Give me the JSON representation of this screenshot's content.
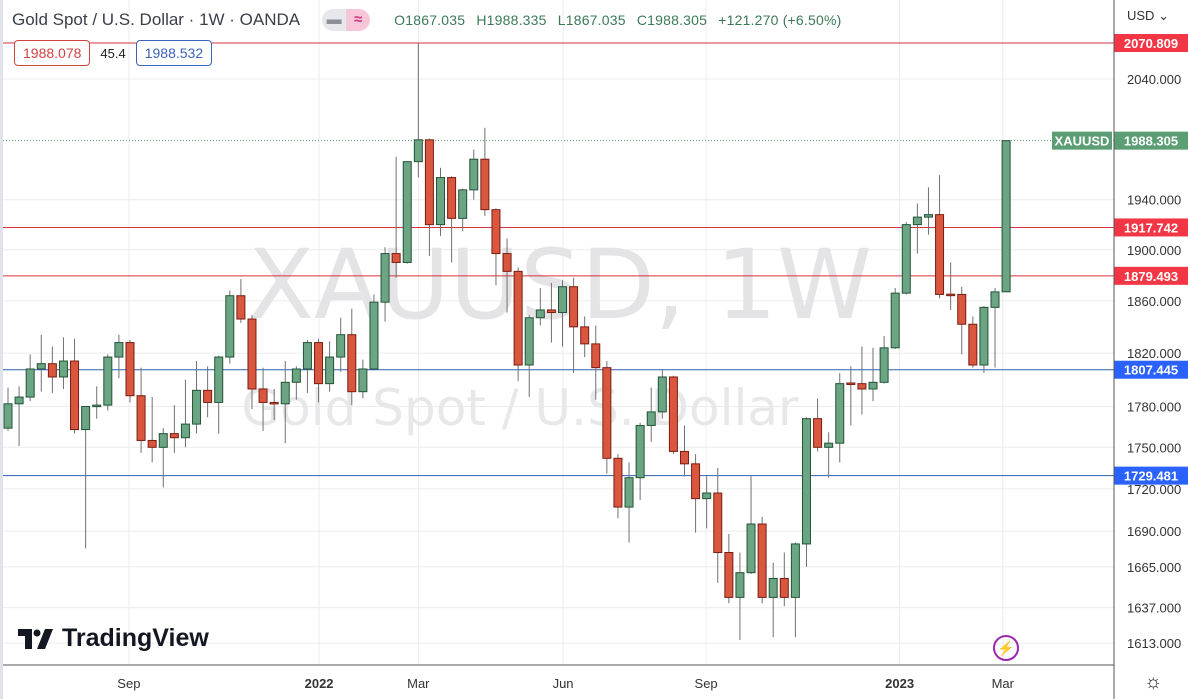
{
  "header": {
    "title": "Gold Spot / U.S. Dollar · 1W · OANDA",
    "open": "O1867.035",
    "high": "H1988.335",
    "low": "L1867.035",
    "close": "C1988.305",
    "change": "+121.270 (+6.50%)"
  },
  "trade": {
    "sell": "1988.078",
    "spread": "45.4",
    "buy": "1988.532"
  },
  "currency_label": "USD",
  "logo_text": "TradingView",
  "colors": {
    "up": "#6ba583",
    "up_border": "#225437",
    "down": "#d9573f",
    "down_border": "#7a1d12",
    "wick": "#707070",
    "resistance": "#d6323f",
    "support": "#2f5fb3",
    "last_price": "#5c9e74"
  },
  "chart_data": {
    "type": "candlestick",
    "title": "XAUUSD, 1W",
    "subtitle": "Gold Spot / U.S. Dollar",
    "yscale": "log",
    "ylim": [
      1595,
      2090
    ],
    "grid": true,
    "y_ticks": [
      "2040.000",
      "1940.000",
      "1900.000",
      "1860.000",
      "1820.000",
      "1780.000",
      "1750.000",
      "1720.000",
      "1690.000",
      "1665.000",
      "1637.000",
      "1613.000"
    ],
    "x_ticks": [
      {
        "label": "Sep",
        "week_index": 10.9
      },
      {
        "label": "2022",
        "week_index": 28.05
      },
      {
        "label": "Mar",
        "week_index": 37.0
      },
      {
        "label": "Jun",
        "week_index": 50.05
      },
      {
        "label": "Sep",
        "week_index": 62.95
      },
      {
        "label": "2023",
        "week_index": 80.4
      },
      {
        "label": "Mar",
        "week_index": 89.7
      }
    ],
    "horizontal_levels": [
      {
        "price": 2070.809,
        "label": "2070.809",
        "kind": "resistance"
      },
      {
        "price": 1917.742,
        "label": "1917.742",
        "kind": "resistance"
      },
      {
        "price": 1879.493,
        "label": "1879.493",
        "kind": "resistance"
      },
      {
        "price": 1807.445,
        "label": "1807.445",
        "kind": "support"
      },
      {
        "price": 1729.481,
        "label": "1729.481",
        "kind": "support"
      }
    ],
    "last_price": {
      "symbol": "XAUUSD",
      "price": 1988.305,
      "label": "1988.305"
    },
    "ohlc": [
      [
        1764,
        1794,
        1762,
        1782
      ],
      [
        1782,
        1795,
        1751,
        1787
      ],
      [
        1787,
        1819,
        1784,
        1808
      ],
      [
        1808,
        1834,
        1791,
        1812
      ],
      [
        1812,
        1825,
        1790,
        1802
      ],
      [
        1802,
        1832,
        1793,
        1814
      ],
      [
        1814,
        1831,
        1760,
        1763
      ],
      [
        1763,
        1780,
        1678,
        1780
      ],
      [
        1780,
        1795,
        1771,
        1781
      ],
      [
        1781,
        1819,
        1777,
        1817
      ],
      [
        1817,
        1834,
        1801,
        1828
      ],
      [
        1828,
        1830,
        1783,
        1788
      ],
      [
        1788,
        1809,
        1746,
        1755
      ],
      [
        1755,
        1787,
        1739,
        1750
      ],
      [
        1750,
        1764,
        1721,
        1760
      ],
      [
        1760,
        1781,
        1746,
        1757
      ],
      [
        1757,
        1800,
        1750,
        1767
      ],
      [
        1767,
        1814,
        1760,
        1792
      ],
      [
        1792,
        1810,
        1772,
        1783
      ],
      [
        1783,
        1818,
        1760,
        1817
      ],
      [
        1817,
        1868,
        1812,
        1864
      ],
      [
        1864,
        1877,
        1843,
        1846
      ],
      [
        1846,
        1849,
        1778,
        1793
      ],
      [
        1793,
        1809,
        1762,
        1783
      ],
      [
        1783,
        1793,
        1770,
        1782
      ],
      [
        1782,
        1814,
        1753,
        1798
      ],
      [
        1798,
        1810,
        1785,
        1808
      ],
      [
        1808,
        1830,
        1790,
        1828
      ],
      [
        1828,
        1831,
        1783,
        1797
      ],
      [
        1797,
        1829,
        1791,
        1817
      ],
      [
        1817,
        1847,
        1806,
        1834
      ],
      [
        1834,
        1854,
        1781,
        1791
      ],
      [
        1791,
        1815,
        1786,
        1808
      ],
      [
        1808,
        1865,
        1807,
        1859
      ],
      [
        1859,
        1902,
        1844,
        1897
      ],
      [
        1897,
        1975,
        1878,
        1890
      ],
      [
        1890,
        1971,
        1889,
        1971
      ],
      [
        1971,
        2071,
        1958,
        1989
      ],
      [
        1989,
        1990,
        1895,
        1920
      ],
      [
        1920,
        1966,
        1911,
        1958
      ],
      [
        1958,
        1959,
        1890,
        1925
      ],
      [
        1925,
        1949,
        1915,
        1948
      ],
      [
        1948,
        1981,
        1940,
        1973
      ],
      [
        1973,
        1999,
        1927,
        1932
      ],
      [
        1932,
        1933,
        1872,
        1897
      ],
      [
        1897,
        1909,
        1851,
        1883
      ],
      [
        1883,
        1886,
        1799,
        1811
      ],
      [
        1811,
        1849,
        1787,
        1847
      ],
      [
        1847,
        1870,
        1841,
        1853
      ],
      [
        1853,
        1874,
        1828,
        1851
      ],
      [
        1851,
        1876,
        1825,
        1871
      ],
      [
        1871,
        1878,
        1805,
        1840
      ],
      [
        1840,
        1848,
        1817,
        1827
      ],
      [
        1827,
        1841,
        1785,
        1809
      ],
      [
        1809,
        1814,
        1731,
        1742
      ],
      [
        1742,
        1745,
        1699,
        1707
      ],
      [
        1707,
        1739,
        1682,
        1728
      ],
      [
        1728,
        1768,
        1712,
        1766
      ],
      [
        1766,
        1794,
        1754,
        1776
      ],
      [
        1776,
        1808,
        1771,
        1802
      ],
      [
        1802,
        1803,
        1745,
        1747
      ],
      [
        1747,
        1766,
        1729,
        1738
      ],
      [
        1738,
        1745,
        1689,
        1713
      ],
      [
        1713,
        1729,
        1692,
        1717
      ],
      [
        1717,
        1735,
        1654,
        1675
      ],
      [
        1675,
        1688,
        1640,
        1644
      ],
      [
        1644,
        1675,
        1615,
        1661
      ],
      [
        1661,
        1729,
        1660,
        1695
      ],
      [
        1695,
        1700,
        1640,
        1644
      ],
      [
        1644,
        1668,
        1617,
        1657
      ],
      [
        1657,
        1675,
        1638,
        1644
      ],
      [
        1644,
        1682,
        1617,
        1681
      ],
      [
        1681,
        1772,
        1665,
        1771
      ],
      [
        1771,
        1786,
        1747,
        1750
      ],
      [
        1750,
        1761,
        1728,
        1753
      ],
      [
        1753,
        1805,
        1739,
        1797
      ],
      [
        1797.5,
        1810,
        1766,
        1796.7
      ],
      [
        1797,
        1825,
        1774,
        1793
      ],
      [
        1793,
        1824,
        1784,
        1798
      ],
      [
        1798,
        1833,
        1797,
        1824
      ],
      [
        1824,
        1870,
        1823,
        1866
      ],
      [
        1866,
        1922,
        1865,
        1920
      ],
      [
        1920,
        1937,
        1897,
        1926
      ],
      [
        1926,
        1950,
        1912,
        1928
      ],
      [
        1928,
        1960,
        1862,
        1865
      ],
      [
        1865.2,
        1890,
        1853,
        1865
      ],
      [
        1865,
        1871,
        1819,
        1842
      ],
      [
        1842,
        1848,
        1809,
        1811
      ],
      [
        1811,
        1856,
        1805,
        1855
      ],
      [
        1855,
        1870,
        1809,
        1867
      ],
      [
        1867.035,
        1988.335,
        1867.035,
        1988.305
      ]
    ]
  }
}
